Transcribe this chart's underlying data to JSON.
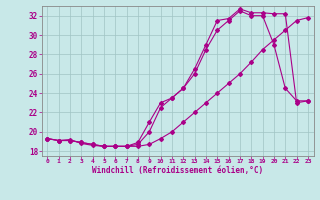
{
  "xlabel": "Windchill (Refroidissement éolien,°C)",
  "xlim": [
    -0.5,
    23.5
  ],
  "ylim": [
    17.5,
    33.0
  ],
  "xticks": [
    0,
    1,
    2,
    3,
    4,
    5,
    6,
    7,
    8,
    9,
    10,
    11,
    12,
    13,
    14,
    15,
    16,
    17,
    18,
    19,
    20,
    21,
    22,
    23
  ],
  "yticks": [
    18,
    20,
    22,
    24,
    26,
    28,
    30,
    32
  ],
  "background_color": "#c8e8e8",
  "grid_color": "#a0c4c4",
  "line_color": "#aa0088",
  "line1_x": [
    0,
    1,
    2,
    3,
    4,
    5,
    6,
    7,
    8,
    9,
    10,
    11,
    12,
    13,
    14,
    15,
    16,
    17,
    18,
    19,
    20,
    21,
    22,
    23
  ],
  "line1_y": [
    19.3,
    19.1,
    19.2,
    18.8,
    18.6,
    18.5,
    18.5,
    18.5,
    18.5,
    18.7,
    19.3,
    20.0,
    21.0,
    22.0,
    23.0,
    24.0,
    25.0,
    26.0,
    27.2,
    28.5,
    29.5,
    30.5,
    31.5,
    31.8
  ],
  "line2_x": [
    0,
    1,
    2,
    3,
    4,
    5,
    6,
    7,
    8,
    9,
    10,
    11,
    12,
    13,
    14,
    15,
    16,
    17,
    18,
    19,
    20,
    21,
    22,
    23
  ],
  "line2_y": [
    19.3,
    19.1,
    19.1,
    18.9,
    18.7,
    18.5,
    18.5,
    18.5,
    18.9,
    21.0,
    23.0,
    23.5,
    24.5,
    26.0,
    28.5,
    30.5,
    31.5,
    32.5,
    32.0,
    32.0,
    29.0,
    24.5,
    23.2,
    23.2
  ],
  "line3_x": [
    0,
    1,
    2,
    3,
    4,
    5,
    6,
    7,
    8,
    9,
    10,
    11,
    12,
    13,
    14,
    15,
    16,
    17,
    18,
    19,
    20,
    21,
    22,
    23
  ],
  "line3_y": [
    19.3,
    19.1,
    19.1,
    18.9,
    18.7,
    18.5,
    18.5,
    18.5,
    18.7,
    20.0,
    22.5,
    23.5,
    24.5,
    26.5,
    29.0,
    31.5,
    31.7,
    32.7,
    32.3,
    32.3,
    32.2,
    32.2,
    23.0,
    23.2
  ]
}
